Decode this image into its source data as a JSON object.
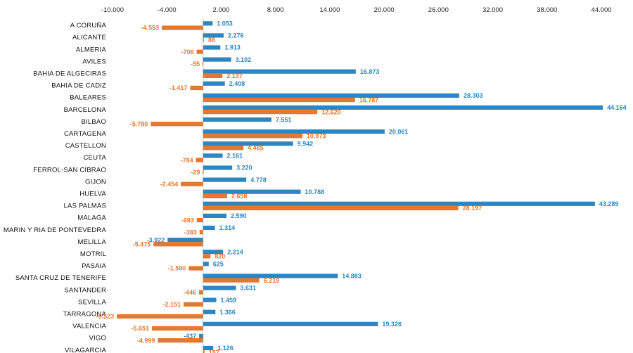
{
  "chart_data": {
    "type": "bar",
    "orientation": "horizontal",
    "title": "",
    "xlabel": "",
    "ylabel": "",
    "xlim": [
      -10000,
      44000
    ],
    "x_ticks": [
      "-10.000",
      "-4.000",
      "2.000",
      "8.000",
      "14.000",
      "20.000",
      "26.000",
      "32.000",
      "38.000",
      "44.000"
    ],
    "x_tick_values": [
      -10000,
      -4000,
      2000,
      8000,
      14000,
      20000,
      26000,
      32000,
      38000,
      44000
    ],
    "grid": false,
    "legend": "none",
    "categories": [
      "A CORUÑA",
      "ALICANTE",
      "ALMERIA",
      "AVILES",
      "BAHIA DE ALGECIRAS",
      "BAHIA DE CADIZ",
      "BALEARES",
      "BARCELONA",
      "BILBAO",
      "CARTAGENA",
      "CASTELLON",
      "CEUTA",
      "FERROL-SAN CIBRAO",
      "GIJON",
      "HUELVA",
      "LAS PALMAS",
      "MALAGA",
      "MARIN Y RIA DE PONTEVEDRA",
      "MELILLA",
      "MOTRIL",
      "PASAIA",
      "SANTA CRUZ DE TENERIFE",
      "SANTANDER",
      "SEVILLA",
      "TARRAGONA",
      "VALENCIA",
      "VIGO",
      "VILAGARCIA"
    ],
    "series": [
      {
        "name": "series-blue",
        "color": "#2E86C1",
        "values": [
          1053,
          2276,
          1913,
          3102,
          16873,
          2408,
          28303,
          44164,
          7551,
          20061,
          9942,
          2161,
          3220,
          4778,
          10788,
          43289,
          2590,
          1314,
          -3922,
          2214,
          625,
          14883,
          3631,
          1459,
          1366,
          19326,
          -437,
          1126
        ],
        "labels": [
          "1.053",
          "2.276",
          "1.913",
          "3.102",
          "16.873",
          "2.408",
          "28.303",
          "44.164",
          "7.551",
          "20.061",
          "9.942",
          "2.161",
          "3.220",
          "4.778",
          "10.788",
          "43.289",
          "2.590",
          "1.314",
          "-3.922",
          "2.214",
          "625",
          "14.883",
          "3.631",
          "1.459",
          "1.366",
          "19.326",
          "-437",
          "1.126"
        ]
      },
      {
        "name": "series-orange",
        "color": "#E6772E",
        "values": [
          -4553,
          88,
          -706,
          -55,
          2137,
          -1417,
          16787,
          12620,
          -5780,
          10973,
          4465,
          -784,
          -29,
          -2454,
          2658,
          28197,
          -693,
          -383,
          -5475,
          820,
          -1590,
          6219,
          -446,
          -2151,
          -9523,
          -5651,
          -4999,
          157
        ],
        "labels": [
          "-4.553",
          "88",
          "-706",
          "-55",
          "2.137",
          "-1.417",
          "16.787",
          "12.620",
          "-5.780",
          "10.973",
          "4.465",
          "-784",
          "-29",
          "-2.454",
          "2.658",
          "28.197",
          "-693",
          "-383",
          "-5.475",
          "820",
          "-1.590",
          "6.219",
          "-446",
          "-2.151",
          "-9.523",
          "-5.651",
          "-4.999",
          "157"
        ]
      }
    ]
  }
}
